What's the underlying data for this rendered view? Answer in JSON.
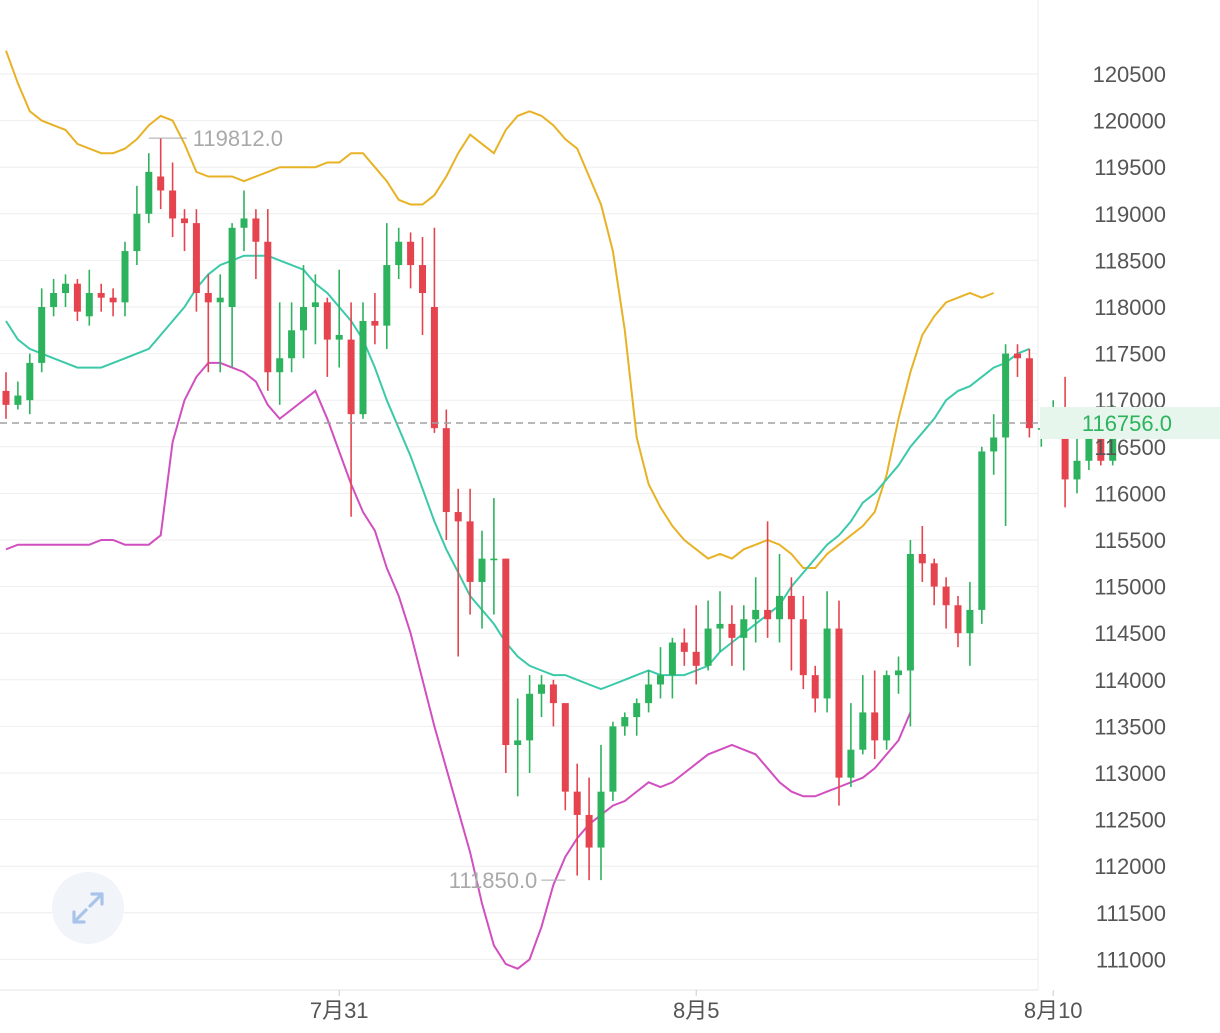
{
  "colors": {
    "up": "#2db35d",
    "down": "#e5434e",
    "boll_upper": "#e8b226",
    "boll_mid": "#3cc9a9",
    "boll_lower": "#d14fbf",
    "grid": "#eeeeee",
    "axis_text": "#555555",
    "price_tag_bg": "#e6f6ec",
    "price_tag_text": "#2db35d",
    "extreme_label": "#a9a9a9",
    "dashed": "#a0a0a0"
  },
  "icons": {
    "expand": "expand-arrows-icon"
  },
  "chart_data": {
    "type": "candlestick",
    "title": "",
    "xlabel": "",
    "ylabel": "",
    "ylim": [
      110700,
      120900
    ],
    "yticks": [
      "120500",
      "120000",
      "119500",
      "119000",
      "118500",
      "118000",
      "117500",
      "117000",
      "116500",
      "116000",
      "115500",
      "115000",
      "114500",
      "114000",
      "113500",
      "113000",
      "112500",
      "112000",
      "111500",
      "111000"
    ],
    "xtick_labels": [
      {
        "label": "7月31",
        "index": 28
      },
      {
        "label": "8月5",
        "index": 58
      },
      {
        "label": "8月10",
        "index": 88
      }
    ],
    "last_price": "116756.0",
    "last_price_value": 116756,
    "high_annotation": {
      "label": "119812.0",
      "value": 119812,
      "index": 12
    },
    "low_annotation": {
      "label": "111850.0",
      "value": 111850,
      "index": 47
    },
    "candles": [
      [
        117100,
        116950,
        117300,
        116800
      ],
      [
        116950,
        117050,
        117200,
        116900
      ],
      [
        117000,
        117400,
        117500,
        116850
      ],
      [
        117400,
        118000,
        118200,
        117300
      ],
      [
        118000,
        118150,
        118300,
        117900
      ],
      [
        118150,
        118250,
        118350,
        118000
      ],
      [
        118250,
        117950,
        118300,
        117850
      ],
      [
        117900,
        118150,
        118400,
        117800
      ],
      [
        118150,
        118100,
        118250,
        117950
      ],
      [
        118100,
        118050,
        118200,
        117900
      ],
      [
        118050,
        118600,
        118700,
        117900
      ],
      [
        118600,
        119000,
        119300,
        118450
      ],
      [
        119000,
        119450,
        119650,
        118900
      ],
      [
        119400,
        119250,
        119812,
        119050
      ],
      [
        119250,
        118950,
        119550,
        118750
      ],
      [
        118950,
        118900,
        119050,
        118600
      ],
      [
        118900,
        118150,
        119050,
        117950
      ],
      [
        118150,
        118050,
        118350,
        117300
      ],
      [
        118050,
        118100,
        118350,
        117300
      ],
      [
        118000,
        118850,
        118900,
        117350
      ],
      [
        118850,
        118950,
        119250,
        118600
      ],
      [
        118950,
        118700,
        119050,
        118300
      ],
      [
        118700,
        117300,
        119050,
        117100
      ],
      [
        117300,
        117450,
        118050,
        116950
      ],
      [
        117450,
        117750,
        118050,
        117300
      ],
      [
        117750,
        118000,
        118450,
        117450
      ],
      [
        118000,
        118050,
        118350,
        117600
      ],
      [
        118050,
        117650,
        118100,
        117250
      ],
      [
        117650,
        117700,
        118400,
        117350
      ],
      [
        117650,
        116850,
        118050,
        115750
      ],
      [
        116850,
        117850,
        118050,
        116800
      ],
      [
        117850,
        117800,
        118150,
        117600
      ],
      [
        117800,
        118450,
        118900,
        117550
      ],
      [
        118450,
        118700,
        118850,
        118300
      ],
      [
        118700,
        118450,
        118800,
        118200
      ],
      [
        118450,
        118150,
        118750,
        117700
      ],
      [
        118000,
        116700,
        118850,
        116650
      ],
      [
        116700,
        115800,
        116900,
        115500
      ],
      [
        115800,
        115700,
        116050,
        114250
      ],
      [
        115700,
        115050,
        116050,
        114700
      ],
      [
        115050,
        115300,
        115600,
        114550
      ],
      [
        115300,
        115300,
        115950,
        114700
      ],
      [
        115300,
        113300,
        115300,
        113000
      ],
      [
        113300,
        113350,
        113800,
        112750
      ],
      [
        113350,
        113850,
        114050,
        113000
      ],
      [
        113850,
        113950,
        114050,
        113600
      ],
      [
        113950,
        113750,
        114000,
        113500
      ],
      [
        113750,
        112800,
        113650,
        112600
      ],
      [
        112800,
        112550,
        113100,
        111900
      ],
      [
        112550,
        112200,
        112950,
        111850
      ],
      [
        112200,
        112800,
        113300,
        111850
      ],
      [
        112800,
        113500,
        113550,
        112700
      ],
      [
        113500,
        113600,
        113650,
        113400
      ],
      [
        113600,
        113750,
        113800,
        113400
      ],
      [
        113750,
        113950,
        114100,
        113650
      ],
      [
        113950,
        114050,
        114350,
        113800
      ],
      [
        114050,
        114400,
        114450,
        113800
      ],
      [
        114400,
        114300,
        114550,
        114150
      ],
      [
        114300,
        114150,
        114800,
        113950
      ],
      [
        114150,
        114550,
        114850,
        114100
      ],
      [
        114550,
        114600,
        114950,
        114300
      ],
      [
        114600,
        114450,
        114800,
        114150
      ],
      [
        114450,
        114650,
        114800,
        114100
      ],
      [
        114650,
        114750,
        115100,
        114400
      ],
      [
        114750,
        114650,
        115700,
        114450
      ],
      [
        114650,
        114900,
        115350,
        114400
      ],
      [
        114900,
        114650,
        115100,
        114100
      ],
      [
        114650,
        114050,
        114900,
        113900
      ],
      [
        114050,
        113800,
        114150,
        113650
      ],
      [
        113800,
        114550,
        114950,
        113650
      ],
      [
        114550,
        112950,
        114850,
        112650
      ],
      [
        112950,
        113250,
        113750,
        112850
      ],
      [
        113250,
        113650,
        114050,
        113200
      ],
      [
        113650,
        113350,
        114100,
        113150
      ],
      [
        113350,
        114050,
        114100,
        113250
      ],
      [
        114050,
        114100,
        114250,
        113850
      ],
      [
        114100,
        115350,
        115500,
        113500
      ],
      [
        115350,
        115250,
        115650,
        115050
      ],
      [
        115250,
        115000,
        115300,
        114800
      ],
      [
        115000,
        114800,
        115100,
        114550
      ],
      [
        114800,
        114500,
        114900,
        114350
      ],
      [
        114500,
        114750,
        115050,
        114150
      ],
      [
        114750,
        116450,
        116500,
        114600
      ],
      [
        116450,
        116600,
        116850,
        116200
      ],
      [
        116600,
        117500,
        117600,
        115650
      ],
      [
        117500,
        117450,
        117600,
        117250
      ],
      [
        117450,
        116700,
        117550,
        116600
      ],
      [
        116700,
        116700,
        116900,
        116500
      ],
      [
        116700,
        116800,
        117000,
        116650
      ],
      [
        116800,
        116150,
        117250,
        115850
      ],
      [
        116150,
        116350,
        116650,
        116000
      ],
      [
        116350,
        116600,
        116900,
        116250
      ],
      [
        116600,
        116350,
        116750,
        116300
      ],
      [
        116350,
        116756,
        116950,
        116300
      ]
    ],
    "boll_upper": [
      120750,
      120400,
      120100,
      120000,
      119950,
      119900,
      119750,
      119700,
      119650,
      119650,
      119700,
      119800,
      119950,
      120050,
      120000,
      119750,
      119450,
      119400,
      119400,
      119400,
      119350,
      119400,
      119450,
      119500,
      119500,
      119500,
      119500,
      119550,
      119550,
      119650,
      119650,
      119500,
      119350,
      119150,
      119100,
      119100,
      119200,
      119400,
      119650,
      119850,
      119750,
      119650,
      119900,
      120050,
      120100,
      120050,
      119950,
      119800,
      119700,
      119400,
      119100,
      118600,
      117750,
      116600,
      116100,
      115850,
      115650,
      115500,
      115400,
      115300,
      115350,
      115300,
      115400,
      115450,
      115500,
      115450,
      115350,
      115200,
      115200,
      115350,
      115450,
      115550,
      115650,
      115800,
      116200,
      116800,
      117300,
      117700,
      117900,
      118050,
      118100,
      118150,
      118100,
      118150
    ],
    "boll_mid": [
      117850,
      117650,
      117550,
      117500,
      117450,
      117400,
      117350,
      117350,
      117350,
      117400,
      117450,
      117500,
      117550,
      117700,
      117850,
      118000,
      118200,
      118350,
      118450,
      118500,
      118550,
      118550,
      118550,
      118500,
      118450,
      118400,
      118250,
      118150,
      118000,
      117850,
      117650,
      117350,
      117000,
      116700,
      116400,
      116050,
      115700,
      115400,
      115150,
      114900,
      114750,
      114600,
      114400,
      114250,
      114150,
      114100,
      114050,
      114050,
      114000,
      113950,
      113900,
      113950,
      114000,
      114050,
      114100,
      114050,
      114050,
      114050,
      114100,
      114150,
      114300,
      114400,
      114500,
      114600,
      114700,
      114800,
      115000,
      115150,
      115300,
      115450,
      115550,
      115700,
      115900,
      116000,
      116150,
      116300,
      116500,
      116650,
      116800,
      117000,
      117100,
      117150,
      117250,
      117350,
      117400,
      117500,
      117550
    ],
    "boll_lower": [
      115400,
      115450,
      115450,
      115450,
      115450,
      115450,
      115450,
      115450,
      115500,
      115500,
      115450,
      115450,
      115450,
      115550,
      116550,
      117000,
      117250,
      117400,
      117400,
      117350,
      117300,
      117200,
      116950,
      116800,
      116900,
      117000,
      117100,
      116800,
      116450,
      116100,
      115800,
      115600,
      115200,
      114900,
      114500,
      114000,
      113500,
      113050,
      112600,
      112150,
      111600,
      111150,
      110950,
      110900,
      111000,
      111350,
      111800,
      112100,
      112300,
      112450,
      112550,
      112650,
      112700,
      112800,
      112900,
      112850,
      112900,
      113000,
      113100,
      113200,
      113250,
      113300,
      113250,
      113200,
      113050,
      112900,
      112800,
      112750,
      112750,
      112800,
      112850,
      112900,
      112950,
      113050,
      113200,
      113350,
      113650
    ]
  }
}
